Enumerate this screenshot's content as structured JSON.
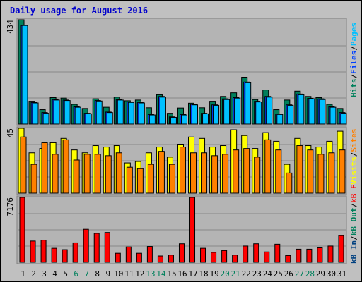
{
  "title": "Daily usage for August 2016",
  "colors": {
    "background": "#c0c0c0",
    "panel": "#b4b4b4",
    "title": "#0000cc",
    "hits": "#00805c",
    "files": "#0040ff",
    "pages": "#00c0ff",
    "visits": "#ffff00",
    "sites": "#ff8000",
    "kbin": "#004080",
    "kbout": "#00805c",
    "kbf": "#ff0000",
    "weekend_label": "#00805c",
    "weekday_label": "#000000"
  },
  "days": [
    "1",
    "2",
    "3",
    "4",
    "5",
    "6",
    "7",
    "8",
    "9",
    "10",
    "11",
    "12",
    "13",
    "14",
    "15",
    "16",
    "17",
    "18",
    "19",
    "20",
    "21",
    "22",
    "23",
    "24",
    "25",
    "26",
    "27",
    "28",
    "29",
    "30",
    "31"
  ],
  "weekend_days": [
    "6",
    "7",
    "13",
    "14",
    "20",
    "21",
    "27",
    "28"
  ],
  "panels": {
    "top": {
      "max_label": "434",
      "legend": [
        {
          "text": "Hits",
          "color_key": "hits"
        },
        {
          "text": "/",
          "color_key": "weekday_label"
        },
        {
          "text": "Files",
          "color_key": "files"
        },
        {
          "text": "/",
          "color_key": "weekday_label"
        },
        {
          "text": "Pages",
          "color_key": "pages"
        }
      ]
    },
    "middle": {
      "max_label": "45",
      "legend": [
        {
          "text": "Visits",
          "color_key": "visits"
        },
        {
          "text": "/",
          "color_key": "weekday_label"
        },
        {
          "text": "Sites",
          "color_key": "sites"
        }
      ]
    },
    "bottom": {
      "max_label": "7176",
      "legend": [
        {
          "text": "kB In",
          "color_key": "kbin"
        },
        {
          "text": "/",
          "color_key": "weekday_label"
        },
        {
          "text": "kB Out",
          "color_key": "kbout"
        },
        {
          "text": "/",
          "color_key": "weekday_label"
        },
        {
          "text": "kB F",
          "color_key": "kbf"
        }
      ]
    }
  },
  "chart_data": {
    "type": "bar",
    "title": "Daily usage for August 2016",
    "categories": [
      "1",
      "2",
      "3",
      "4",
      "5",
      "6",
      "7",
      "8",
      "9",
      "10",
      "11",
      "12",
      "13",
      "14",
      "15",
      "16",
      "17",
      "18",
      "19",
      "20",
      "21",
      "22",
      "23",
      "24",
      "25",
      "26",
      "27",
      "28",
      "29",
      "30",
      "31"
    ],
    "panels": [
      {
        "name": "Hits / Files / Pages",
        "ylim": [
          0,
          434
        ],
        "series": [
          {
            "name": "Hits",
            "values": [
              434,
              95,
              60,
              110,
              108,
              82,
              65,
              105,
              70,
              112,
              97,
              100,
              68,
              122,
              45,
              67,
              87,
              68,
              95,
              115,
              130,
              195,
              102,
              142,
              60,
              100,
              137,
              115,
              110,
              82,
              65
            ]
          },
          {
            "name": "Files",
            "values": [
              410,
              90,
              48,
              102,
              100,
              72,
              45,
              98,
              50,
              102,
              92,
              90,
              40,
              115,
              30,
              40,
              82,
              45,
              80,
              105,
              110,
              175,
              95,
              115,
              42,
              80,
              125,
              107,
              105,
              72,
              48
            ]
          },
          {
            "name": "Pages",
            "values": [
              410,
              88,
              45,
              100,
              98,
              70,
              43,
              96,
              48,
              100,
              90,
              88,
              38,
              112,
              28,
              38,
              80,
              43,
              78,
              102,
              108,
              172,
              92,
              112,
              40,
              78,
              122,
              105,
              102,
              70,
              45
            ]
          }
        ]
      },
      {
        "name": "Visits / Sites",
        "ylim": [
          0,
          45
        ],
        "series": [
          {
            "name": "Visits",
            "values": [
              45,
              28,
              31,
              35,
              38,
              30,
              28,
              33,
              32,
              33,
              21,
              22,
              28,
              32,
              25,
              34,
              39,
              38,
              32,
              33,
              44,
              40,
              31,
              42,
              36,
              20,
              38,
              33,
              32,
              36,
              43
            ]
          },
          {
            "name": "Sites",
            "values": [
              39,
              20,
              35,
              27,
              37,
              23,
              27,
              27,
              26,
              28,
              18,
              17,
              20,
              29,
              20,
              32,
              28,
              28,
              26,
              27,
              30,
              31,
              25,
              37,
              30,
              14,
              33,
              30,
              27,
              28,
              30
            ]
          }
        ]
      },
      {
        "name": "kB In / kB Out / kB F",
        "ylim": [
          0,
          7176
        ],
        "series": [
          {
            "name": "kB F",
            "values": [
              7176,
              2350,
              2450,
              1550,
              1400,
              2150,
              3650,
              3200,
              3300,
              1000,
              1700,
              1000,
              1750,
              700,
              800,
              2050,
              7176,
              1550,
              1100,
              1300,
              800,
              1800,
              2050,
              1150,
              2000,
              750,
              1450,
              1450,
              1600,
              1800,
              2950
            ]
          }
        ]
      }
    ]
  }
}
